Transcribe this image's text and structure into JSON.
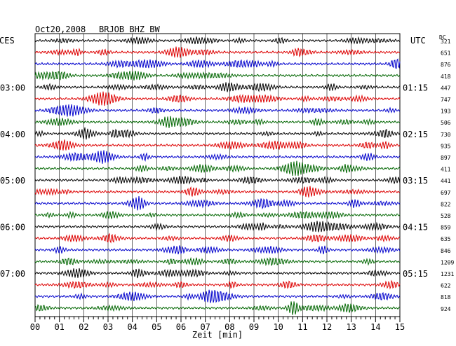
{
  "header": {
    "date": "Oct20,2008",
    "station": "BRJOB BHZ BW",
    "left_tz": "CES",
    "right_tz": "UTC",
    "dc_label": "DC"
  },
  "chart_data": {
    "type": "line",
    "title": "Oct20,2008   BRJOB BHZ BW",
    "xlabel": "Zeit [min]",
    "xlim": [
      0,
      15
    ],
    "x_ticks": [
      "00",
      "01",
      "02",
      "03",
      "04",
      "05",
      "06",
      "07",
      "08",
      "09",
      "10",
      "11",
      "12",
      "13",
      "14",
      "15"
    ],
    "grid": true,
    "trace_colors": [
      "#000000",
      "#dd0000",
      "#0000cc",
      "#006600"
    ],
    "left_hour_labels": [
      {
        "trace": 4,
        "text": "03:00"
      },
      {
        "trace": 8,
        "text": "04:00"
      },
      {
        "trace": 12,
        "text": "05:00"
      },
      {
        "trace": 16,
        "text": "06:00"
      },
      {
        "trace": 20,
        "text": "07:00"
      }
    ],
    "right_hour_labels": [
      {
        "trace": 4,
        "text": "01:15"
      },
      {
        "trace": 8,
        "text": "02:15"
      },
      {
        "trace": 12,
        "text": "03:15"
      },
      {
        "trace": 16,
        "text": "04:15"
      },
      {
        "trace": 20,
        "text": "05:15"
      }
    ],
    "dc_offsets": [
      321,
      651,
      876,
      418,
      447,
      747,
      193,
      506,
      730,
      935,
      897,
      411,
      441,
      697,
      822,
      528,
      859,
      635,
      846,
      1209,
      1231,
      622,
      818,
      924
    ]
  }
}
